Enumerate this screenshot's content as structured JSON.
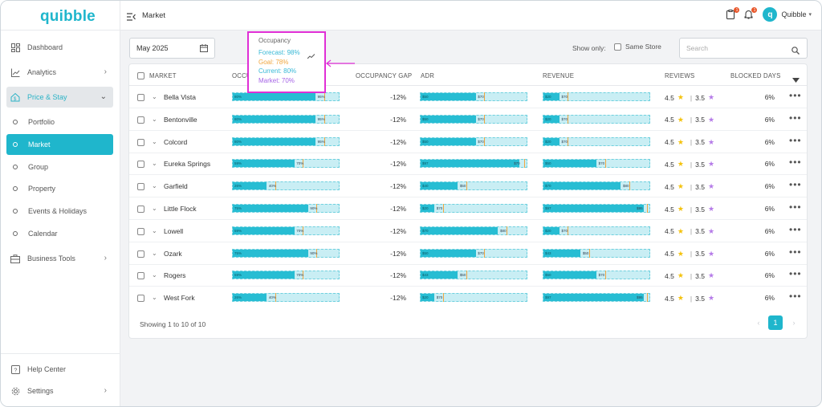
{
  "app": {
    "logo": "quibble",
    "page_title": "Market"
  },
  "sidebar": {
    "items": [
      {
        "label": "Dashboard",
        "icon": "dashboard-icon"
      },
      {
        "label": "Analytics",
        "icon": "analytics-icon"
      },
      {
        "label": "Price & Stay",
        "icon": "price-stay-icon"
      },
      {
        "label": "Business Tools",
        "icon": "briefcase-icon"
      },
      {
        "label": "Help Center",
        "icon": "help-icon"
      },
      {
        "label": "Settings",
        "icon": "gear-icon"
      }
    ],
    "subitems": [
      "Portfolio",
      "Market",
      "Group",
      "Property",
      "Events & Holidays",
      "Calendar"
    ]
  },
  "user": {
    "avatar_letter": "q",
    "name": "Quibble",
    "badge_a": "1",
    "badge_b": "1"
  },
  "filters": {
    "date": "May 2025",
    "show_only": "Show only:",
    "same_store": "Same Store",
    "search_placeholder": "Search"
  },
  "table": {
    "headers": {
      "market": "MARKET",
      "occupancy": "OCCUPANCY",
      "gap": "OCCUPANCY GAP",
      "adr": "ADR",
      "revenue": "REVENUE",
      "reviews": "REVIEWS",
      "blocked": "BLOCKED DAYS"
    },
    "rows": [
      {
        "market": "Bella Vista",
        "occ_fill": 0.78,
        "occ_in": "80%",
        "occ_out": "95%",
        "gap": "-12%",
        "adr_fill": 0.52,
        "adr_in": "$50",
        "adr_out": "$70",
        "rev_fill": 0.15,
        "rev_in": "$20",
        "rev_out": "$70",
        "r1": "4.5",
        "r2": "3.5",
        "blocked": "6%"
      },
      {
        "market": "Bentonville",
        "occ_fill": 0.78,
        "occ_in": "80%",
        "occ_out": "95%",
        "gap": "-12%",
        "adr_fill": 0.52,
        "adr_in": "$50",
        "adr_out": "$70",
        "rev_fill": 0.15,
        "rev_in": "$20",
        "rev_out": "$70",
        "r1": "4.5",
        "r2": "3.5",
        "blocked": "6%"
      },
      {
        "market": "Colcord",
        "occ_fill": 0.78,
        "occ_in": "80%",
        "occ_out": "95%",
        "gap": "-12%",
        "adr_fill": 0.52,
        "adr_in": "$50",
        "adr_out": "$70",
        "rev_fill": 0.15,
        "rev_in": "$20",
        "rev_out": "$70",
        "r1": "4.5",
        "r2": "3.5",
        "blocked": "6%"
      },
      {
        "market": "Eureka Springs",
        "occ_fill": 0.58,
        "occ_in": "59%",
        "occ_out": "70%",
        "gap": "-12%",
        "adr_fill": 0.93,
        "adr_in": "$97",
        "adr_out": "$70",
        "rev_fill": 0.5,
        "rev_in": "$50",
        "rev_out": "$70",
        "r1": "4.5",
        "r2": "3.5",
        "blocked": "6%"
      },
      {
        "market": "Garfield",
        "occ_fill": 0.32,
        "occ_in": "26%",
        "occ_out": "40%",
        "gap": "-12%",
        "adr_fill": 0.35,
        "adr_in": "$40",
        "adr_out": "$50",
        "rev_fill": 0.73,
        "rev_in": "$70",
        "rev_out": "$80",
        "r1": "4.5",
        "r2": "3.5",
        "blocked": "6%"
      },
      {
        "market": "Little Flock",
        "occ_fill": 0.71,
        "occ_in": "75%",
        "occ_out": "90%",
        "gap": "-12%",
        "adr_fill": 0.13,
        "adr_in": "$20",
        "adr_out": "$70",
        "rev_fill": 0.95,
        "rev_in": "$97",
        "rev_out": "$95",
        "r1": "4.5",
        "r2": "3.5",
        "blocked": "6%"
      },
      {
        "market": "Lowell",
        "occ_fill": 0.58,
        "occ_in": "59%",
        "occ_out": "70%",
        "gap": "-12%",
        "adr_fill": 0.73,
        "adr_in": "$70",
        "adr_out": "$80",
        "rev_fill": 0.15,
        "rev_in": "$20",
        "rev_out": "$70",
        "r1": "4.5",
        "r2": "3.5",
        "blocked": "6%"
      },
      {
        "market": "Ozark",
        "occ_fill": 0.71,
        "occ_in": "75%",
        "occ_out": "90%",
        "gap": "-12%",
        "adr_fill": 0.52,
        "adr_in": "$50",
        "adr_out": "$70",
        "rev_fill": 0.35,
        "rev_in": "$43",
        "rev_out": "$50",
        "r1": "4.5",
        "r2": "3.5",
        "blocked": "6%"
      },
      {
        "market": "Rogers",
        "occ_fill": 0.58,
        "occ_in": "59%",
        "occ_out": "70%",
        "gap": "-12%",
        "adr_fill": 0.35,
        "adr_in": "$43",
        "adr_out": "$50",
        "rev_fill": 0.5,
        "rev_in": "$50",
        "rev_out": "$70",
        "r1": "4.5",
        "r2": "3.5",
        "blocked": "6%"
      },
      {
        "market": "West Fork",
        "occ_fill": 0.32,
        "occ_in": "26%",
        "occ_out": "40%",
        "gap": "-12%",
        "adr_fill": 0.13,
        "adr_in": "$20",
        "adr_out": "$70",
        "rev_fill": 0.95,
        "rev_in": "$97",
        "rev_out": "$95",
        "r1": "4.5",
        "r2": "3.5",
        "blocked": "6%"
      }
    ],
    "footer": "Showing 1 to 10 of 10",
    "page": "1"
  },
  "tooltip": {
    "title": "Occupancy",
    "forecast": "Forecast: 98%",
    "goal": "Goal: 78%",
    "current": "Current: 80%",
    "market": "Market: 70%"
  },
  "colors": {
    "accent": "#1fb6cc",
    "goal": "#f0a640",
    "highlight": "#e02fd6",
    "star_yellow": "#f4c20d",
    "star_purple": "#b57be8"
  }
}
